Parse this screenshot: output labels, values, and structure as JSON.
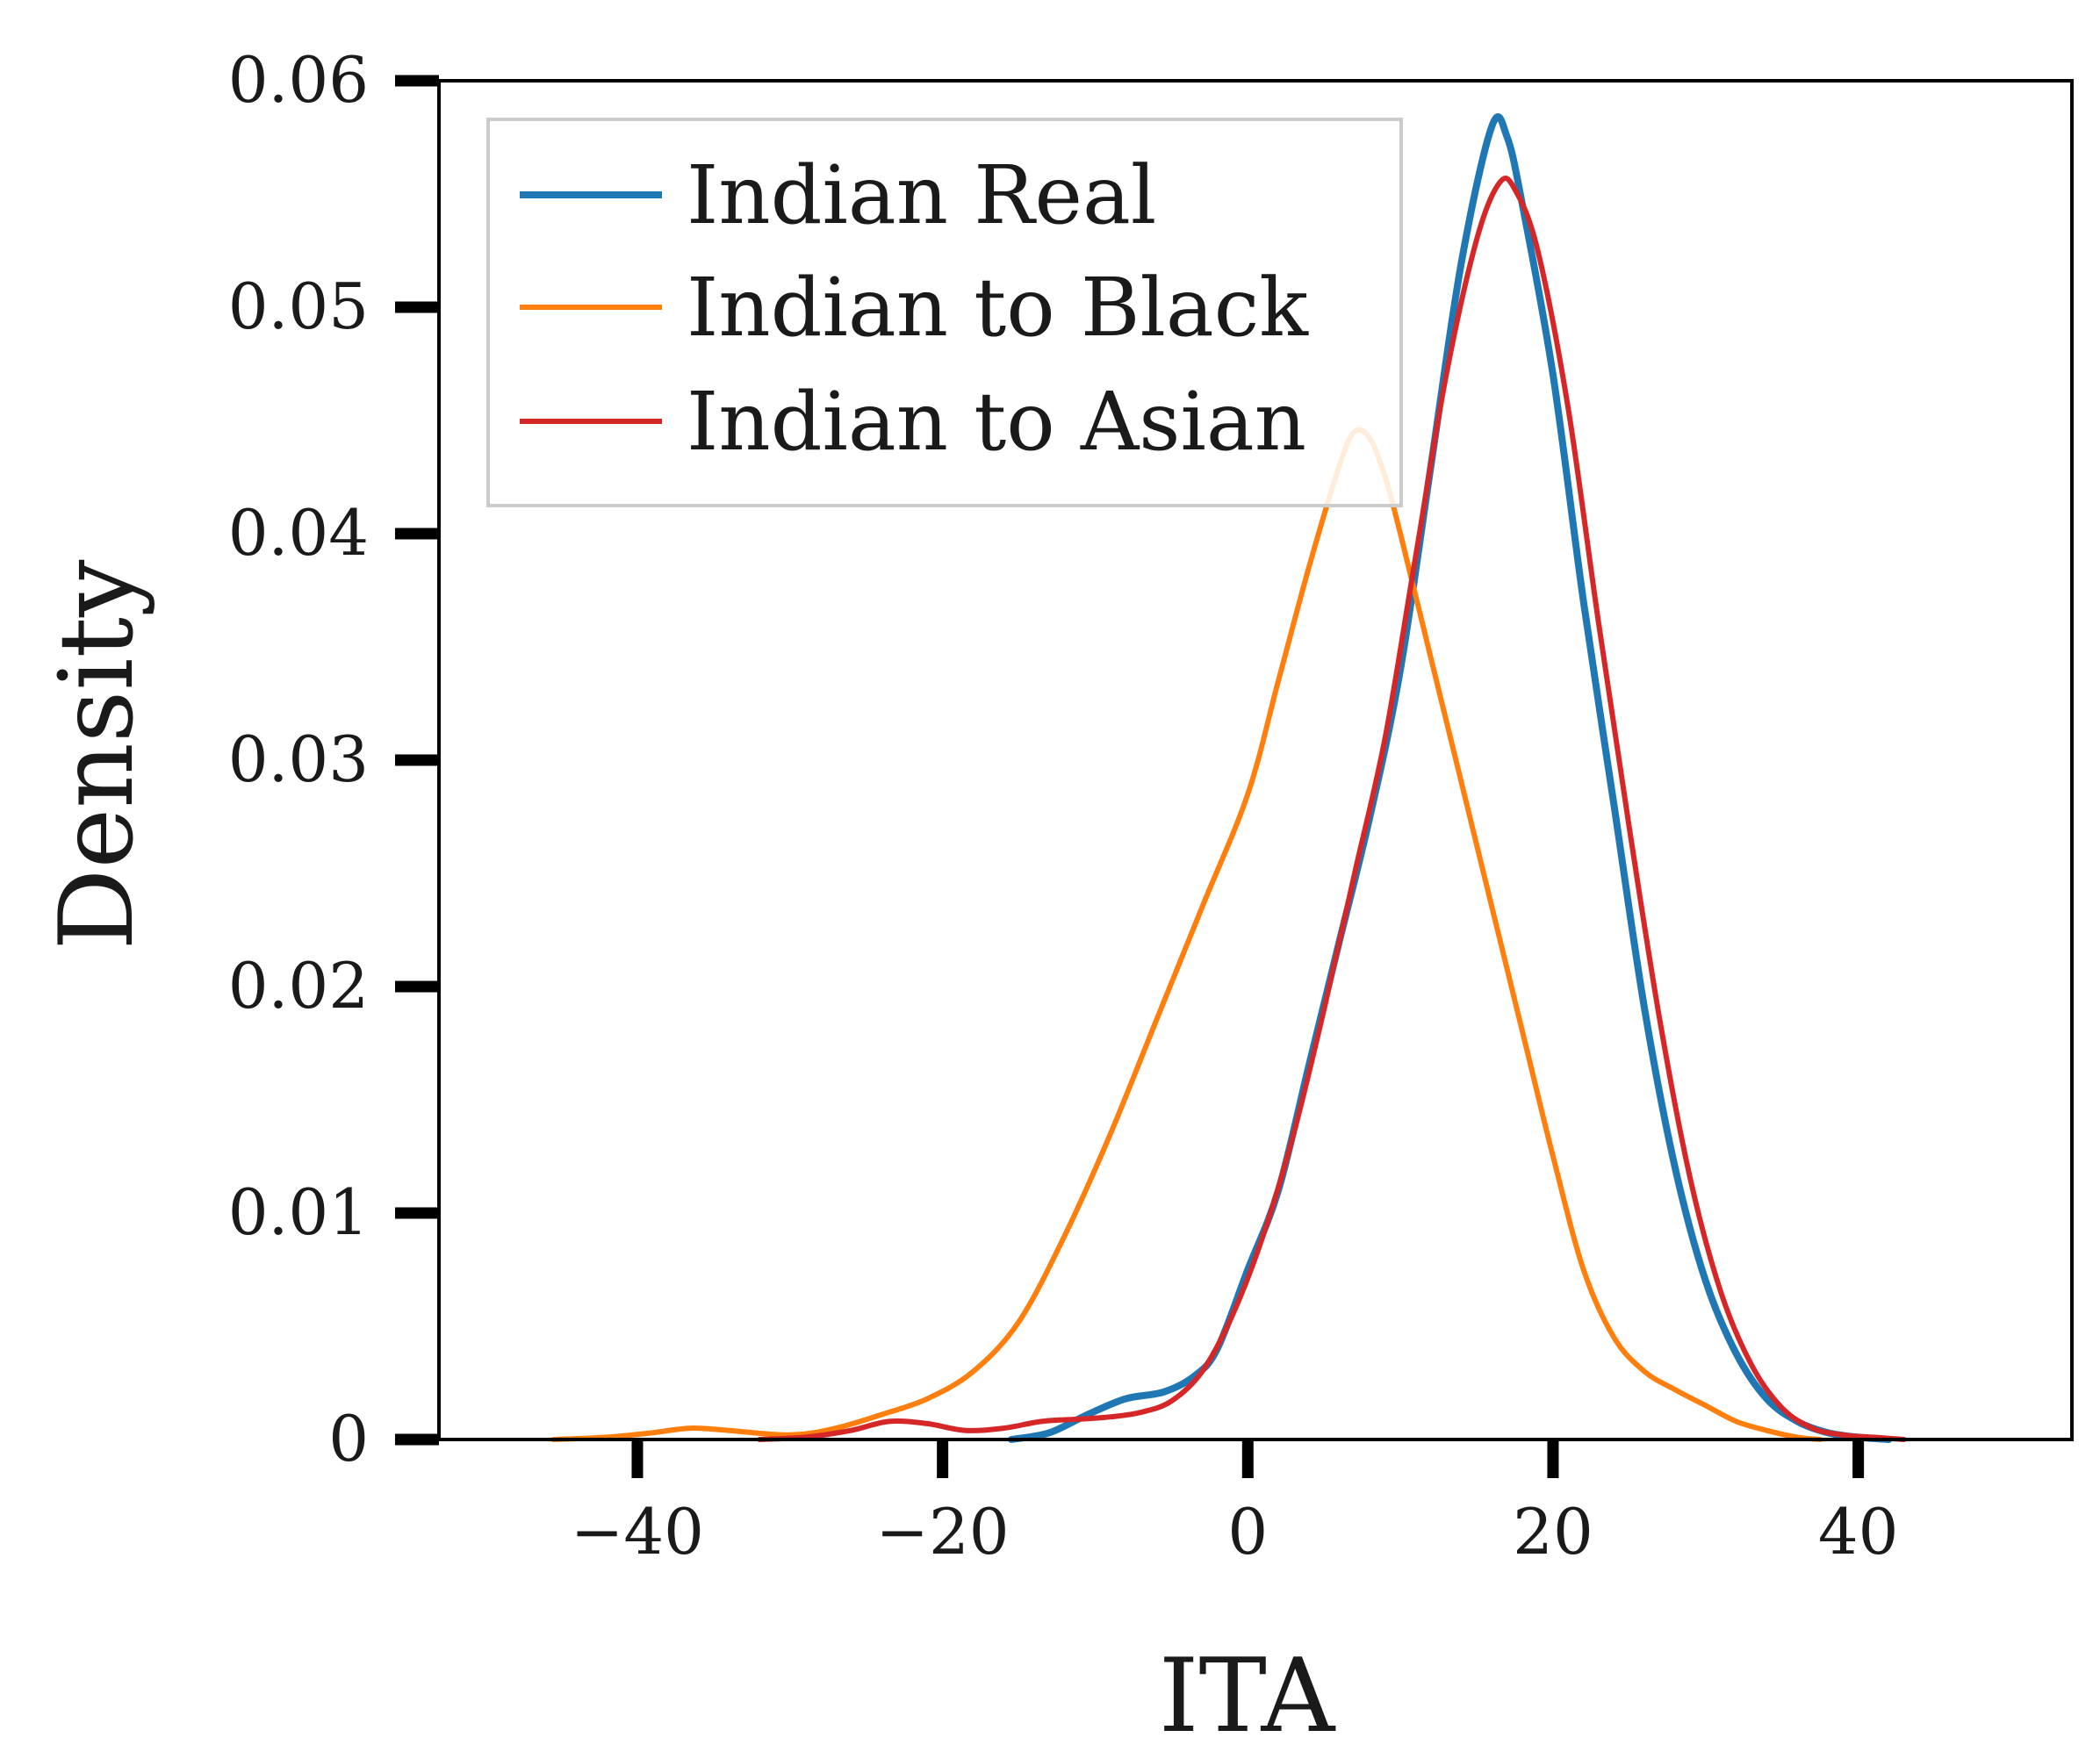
{
  "chart_data": {
    "type": "line",
    "title": "",
    "xlabel": "ITA",
    "ylabel": "Density",
    "xlim": [
      -53,
      54
    ],
    "ylim": [
      0,
      0.06
    ],
    "xticks": [
      -40,
      -20,
      0,
      20,
      40
    ],
    "xtick_labels": [
      "−40",
      "−20",
      "0",
      "20",
      "40"
    ],
    "yticks": [
      0,
      0.01,
      0.02,
      0.03,
      0.04,
      0.05,
      0.06
    ],
    "ytick_labels": [
      "0",
      "0.01",
      "0.02",
      "0.03",
      "0.04",
      "0.05",
      "0.06"
    ],
    "grid": false,
    "legend_position": "top-left",
    "series": [
      {
        "name": "Indian Real",
        "color": "#1f77b4",
        "points": [
          [
            -15.5,
            0
          ],
          [
            -13,
            0.0003
          ],
          [
            -10.5,
            0.0011
          ],
          [
            -8,
            0.0018
          ],
          [
            -5.5,
            0.0021
          ],
          [
            -3.5,
            0.0028
          ],
          [
            -2,
            0.004
          ],
          [
            0,
            0.0075
          ],
          [
            2,
            0.011
          ],
          [
            4,
            0.0165
          ],
          [
            6,
            0.022
          ],
          [
            8,
            0.0275
          ],
          [
            10,
            0.034
          ],
          [
            12,
            0.043
          ],
          [
            14,
            0.052
          ],
          [
            16,
            0.058
          ],
          [
            17,
            0.0575
          ],
          [
            18,
            0.0545
          ],
          [
            20,
            0.047
          ],
          [
            22,
            0.037
          ],
          [
            24,
            0.028
          ],
          [
            26,
            0.019
          ],
          [
            28,
            0.012
          ],
          [
            30,
            0.007
          ],
          [
            32,
            0.0038
          ],
          [
            34,
            0.0018
          ],
          [
            36,
            0.0008
          ],
          [
            38,
            0.0003
          ],
          [
            40,
            0.0001
          ],
          [
            42,
            0
          ]
        ]
      },
      {
        "name": "Indian to Black",
        "color": "#ff7f0e",
        "points": [
          [
            -45.5,
            0
          ],
          [
            -42,
            0.0001
          ],
          [
            -39,
            0.0003
          ],
          [
            -36.5,
            0.0005
          ],
          [
            -34,
            0.0004
          ],
          [
            -30,
            0.0002
          ],
          [
            -27,
            0.0005
          ],
          [
            -24,
            0.0011
          ],
          [
            -21,
            0.0018
          ],
          [
            -18,
            0.003
          ],
          [
            -15,
            0.0052
          ],
          [
            -12,
            0.009
          ],
          [
            -9,
            0.0135
          ],
          [
            -6,
            0.0185
          ],
          [
            -3,
            0.0235
          ],
          [
            0,
            0.0285
          ],
          [
            2,
            0.0335
          ],
          [
            4,
            0.0385
          ],
          [
            6,
            0.043
          ],
          [
            7,
            0.0445
          ],
          [
            8,
            0.0442
          ],
          [
            9,
            0.0425
          ],
          [
            10,
            0.04
          ],
          [
            12,
            0.0345
          ],
          [
            14,
            0.029
          ],
          [
            16,
            0.0235
          ],
          [
            18,
            0.018
          ],
          [
            20,
            0.0125
          ],
          [
            22,
            0.0075
          ],
          [
            24,
            0.0045
          ],
          [
            26,
            0.003
          ],
          [
            28,
            0.0022
          ],
          [
            30,
            0.0015
          ],
          [
            32,
            0.0008
          ],
          [
            34,
            0.0004
          ],
          [
            36,
            0.0001
          ],
          [
            37.5,
            0
          ]
        ]
      },
      {
        "name": "Indian to Asian",
        "color": "#d62728",
        "points": [
          [
            -32,
            0
          ],
          [
            -29,
            0.0001
          ],
          [
            -26,
            0.0004
          ],
          [
            -23.5,
            0.0008
          ],
          [
            -21,
            0.0007
          ],
          [
            -18.5,
            0.0004
          ],
          [
            -16,
            0.0005
          ],
          [
            -13.5,
            0.0008
          ],
          [
            -11,
            0.0009
          ],
          [
            -9,
            0.001
          ],
          [
            -7,
            0.0012
          ],
          [
            -5,
            0.0017
          ],
          [
            -3,
            0.003
          ],
          [
            -1,
            0.0055
          ],
          [
            1,
            0.009
          ],
          [
            3,
            0.0135
          ],
          [
            5,
            0.019
          ],
          [
            7,
            0.025
          ],
          [
            9,
            0.031
          ],
          [
            11,
            0.039
          ],
          [
            13,
            0.047
          ],
          [
            15,
            0.053
          ],
          [
            16.5,
            0.0555
          ],
          [
            17.5,
            0.0552
          ],
          [
            19,
            0.0525
          ],
          [
            21,
            0.0455
          ],
          [
            23,
            0.036
          ],
          [
            25,
            0.027
          ],
          [
            27,
            0.0185
          ],
          [
            29,
            0.0115
          ],
          [
            31,
            0.0065
          ],
          [
            33,
            0.0033
          ],
          [
            35,
            0.0014
          ],
          [
            37,
            0.0005
          ],
          [
            39,
            0.0002
          ],
          [
            41,
            0.0001
          ],
          [
            43,
            0
          ]
        ]
      }
    ]
  }
}
